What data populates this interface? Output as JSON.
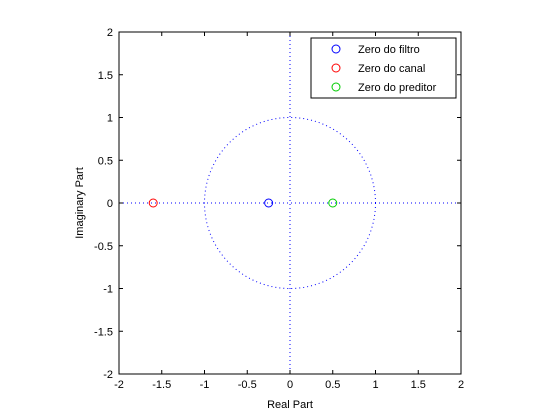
{
  "chart_data": {
    "type": "scatter",
    "title": "",
    "xlabel": "Real Part",
    "ylabel": "Imaginary Part",
    "xlim": [
      -2,
      2
    ],
    "ylim": [
      -2,
      2
    ],
    "xticks": [
      -2,
      -1.5,
      -1,
      -0.5,
      0,
      0.5,
      1,
      1.5,
      2
    ],
    "yticks": [
      -2,
      -1.5,
      -1,
      -0.5,
      0,
      0.5,
      1,
      1.5,
      2
    ],
    "xtick_labels": [
      "-2",
      "-1.5",
      "-1",
      "-0.5",
      "0",
      "0.5",
      "1",
      "1.5",
      "2"
    ],
    "ytick_labels": [
      "-2",
      "-1.5",
      "-1",
      "-0.5",
      "0",
      "0.5",
      "1",
      "1.5",
      "2"
    ],
    "unit_circle": true,
    "grid": false,
    "legend_position": "top-right",
    "series": [
      {
        "name": "Zero do filtro",
        "marker": "circle",
        "color": "#0000ff",
        "points": [
          [
            -0.25,
            0
          ]
        ]
      },
      {
        "name": "Zero do canal",
        "marker": "circle",
        "color": "#ff0000",
        "points": [
          [
            -1.6,
            0
          ]
        ]
      },
      {
        "name": "Zero do preditor",
        "marker": "circle",
        "color": "#00cc00",
        "points": [
          [
            0.5,
            0
          ]
        ]
      }
    ]
  }
}
